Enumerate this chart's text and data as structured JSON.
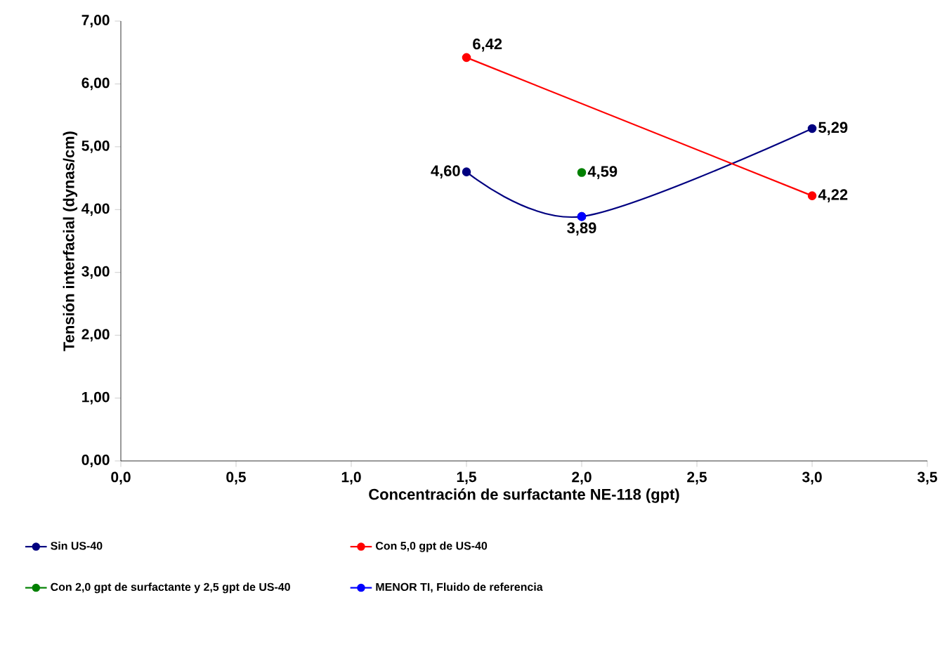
{
  "chart_data": {
    "type": "line",
    "xlabel": "Concentración de surfactante NE-118 (gpt)",
    "ylabel": "Tensión interfacial (dynas/cm)",
    "xlim": [
      0,
      3.5
    ],
    "ylim": [
      0,
      7
    ],
    "xticks": [
      {
        "value": 0,
        "label": "0,0"
      },
      {
        "value": 0.5,
        "label": "0,5"
      },
      {
        "value": 1,
        "label": "1,0"
      },
      {
        "value": 1.5,
        "label": "1,5"
      },
      {
        "value": 2,
        "label": "2,0"
      },
      {
        "value": 2.5,
        "label": "2,5"
      },
      {
        "value": 3,
        "label": "3,0"
      },
      {
        "value": 3.5,
        "label": "3,5"
      }
    ],
    "yticks": [
      {
        "value": 0,
        "label": "0,00"
      },
      {
        "value": 1,
        "label": "1,00"
      },
      {
        "value": 2,
        "label": "2,00"
      },
      {
        "value": 3,
        "label": "3,00"
      },
      {
        "value": 4,
        "label": "4,00"
      },
      {
        "value": 5,
        "label": "5,00"
      },
      {
        "value": 6,
        "label": "6,00"
      },
      {
        "value": 7,
        "label": "7,00"
      }
    ],
    "grid": false,
    "legend": "bottom",
    "marker": "circle",
    "line_style": "solid",
    "series": [
      {
        "name": "Sin US-40",
        "color": "#000080",
        "x": [
          1.5,
          2.0,
          3.0
        ],
        "values": [
          4.6,
          3.89,
          5.29
        ],
        "value_labels": [
          "4,60",
          null,
          "5,29"
        ]
      },
      {
        "name": "Con 5,0 gpt de US-40",
        "color": "#ff0000",
        "x": [
          1.5,
          3.0
        ],
        "values": [
          6.42,
          4.22
        ],
        "value_labels": [
          "6,42",
          "4,22"
        ]
      },
      {
        "name": "Con 2,0 gpt de surfactante y 2,5 gpt de US-40",
        "color": "#008000",
        "x": [
          2.0
        ],
        "values": [
          4.59
        ],
        "value_labels": [
          "4,59"
        ]
      },
      {
        "name": "MENOR TI, Fluido de referencia",
        "color": "#0000ff",
        "x": [
          2.0
        ],
        "values": [
          3.89
        ],
        "value_labels": [
          "3,89"
        ]
      }
    ]
  }
}
